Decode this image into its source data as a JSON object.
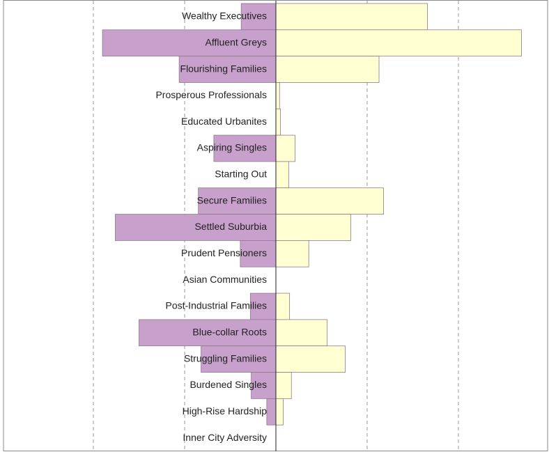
{
  "chart_data": {
    "type": "bar",
    "orientation": "horizontal",
    "categories": [
      "Wealthy Executives",
      "Affluent Greys",
      "Flourishing Families",
      "Prosperous Professionals",
      "Educated Urbanites",
      "Aspiring Singles",
      "Starting Out",
      "Secure Families",
      "Settled Suburbia",
      "Prudent Pensioners",
      "Asian Communities",
      "Post-Industrial Families",
      "Blue-collar Roots",
      "Struggling Families",
      "Burdened Singles",
      "High-Rise Hardship",
      "Inner City Adversity"
    ],
    "series": [
      {
        "color": "#c8a0cc",
        "values": [
          -3.8,
          -19.0,
          -10.6,
          0,
          0,
          -6.8,
          0,
          -8.5,
          -17.6,
          -3.9,
          0,
          -2.8,
          -15.0,
          -8.2,
          -2.7,
          -1.0,
          0
        ]
      },
      {
        "color": "#ffffd2",
        "values": [
          16.6,
          26.9,
          11.3,
          0.4,
          0.5,
          2.1,
          1.4,
          11.8,
          8.2,
          3.6,
          0,
          1.5,
          5.6,
          7.6,
          1.7,
          0.8,
          0
        ]
      }
    ],
    "xlim": [
      -30,
      30
    ],
    "xticks": [
      -20,
      -10,
      0,
      10,
      20
    ],
    "grid": true
  }
}
